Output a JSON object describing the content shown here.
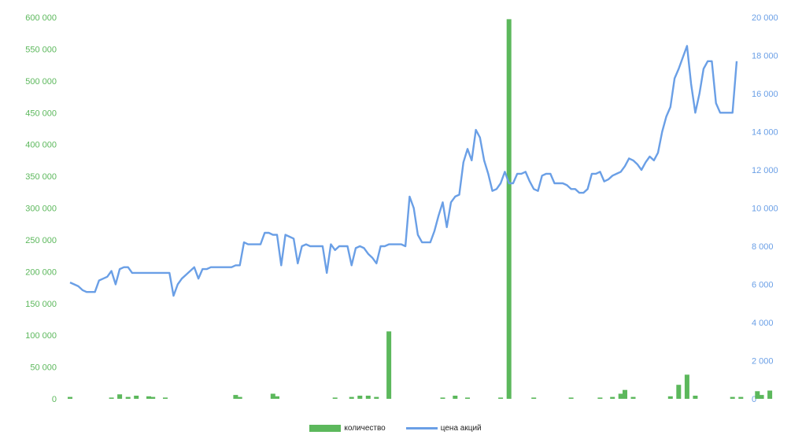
{
  "chart_data": {
    "type": "bar+line",
    "left_axis": {
      "ylim": [
        0,
        600000
      ],
      "ticks": [
        "0",
        "50 000",
        "100 000",
        "150 000",
        "200 000",
        "250 000",
        "300 000",
        "350 000",
        "400 000",
        "450 000",
        "500 000",
        "550 000",
        "600 000"
      ]
    },
    "right_axis": {
      "ylim": [
        0,
        20000
      ],
      "ticks": [
        "0",
        "2 000",
        "4 000",
        "6 000",
        "8 000",
        "10 000",
        "12 000",
        "14 000",
        "16 000",
        "18 000",
        "20 000"
      ]
    },
    "grid": false,
    "legend_position": "bottom",
    "series": [
      {
        "name": "количество",
        "type": "bar",
        "axis": "left",
        "color": "#5cb85c",
        "bars": [
          {
            "i": 0,
            "v": 3000
          },
          {
            "i": 10,
            "v": 2000
          },
          {
            "i": 12,
            "v": 7000
          },
          {
            "i": 14,
            "v": 3000
          },
          {
            "i": 16,
            "v": 5000
          },
          {
            "i": 19,
            "v": 4000
          },
          {
            "i": 20,
            "v": 3000
          },
          {
            "i": 23,
            "v": 2000
          },
          {
            "i": 40,
            "v": 6000
          },
          {
            "i": 41,
            "v": 3000
          },
          {
            "i": 49,
            "v": 8000
          },
          {
            "i": 50,
            "v": 4000
          },
          {
            "i": 64,
            "v": 2000
          },
          {
            "i": 68,
            "v": 3000
          },
          {
            "i": 70,
            "v": 5000
          },
          {
            "i": 72,
            "v": 5000
          },
          {
            "i": 74,
            "v": 3000
          },
          {
            "i": 77,
            "v": 106000
          },
          {
            "i": 90,
            "v": 2000
          },
          {
            "i": 93,
            "v": 5000
          },
          {
            "i": 96,
            "v": 2000
          },
          {
            "i": 104,
            "v": 2000
          },
          {
            "i": 106,
            "v": 597000
          },
          {
            "i": 112,
            "v": 2000
          },
          {
            "i": 121,
            "v": 2000
          },
          {
            "i": 128,
            "v": 2000
          },
          {
            "i": 131,
            "v": 3000
          },
          {
            "i": 133,
            "v": 8000
          },
          {
            "i": 134,
            "v": 14000
          },
          {
            "i": 136,
            "v": 3000
          },
          {
            "i": 145,
            "v": 4000
          },
          {
            "i": 147,
            "v": 22000
          },
          {
            "i": 149,
            "v": 38000
          },
          {
            "i": 151,
            "v": 5000
          },
          {
            "i": 160,
            "v": 3000
          },
          {
            "i": 162,
            "v": 3000
          },
          {
            "i": 166,
            "v": 12000
          },
          {
            "i": 167,
            "v": 6000
          },
          {
            "i": 169,
            "v": 13000
          }
        ]
      },
      {
        "name": "цена акций",
        "type": "line",
        "axis": "right",
        "color": "#6a9fe6",
        "values": [
          6100,
          6000,
          5900,
          5700,
          5600,
          5600,
          5600,
          6200,
          6300,
          6400,
          6700,
          6000,
          6800,
          6900,
          6900,
          6600,
          6600,
          6600,
          6600,
          6600,
          6600,
          6600,
          6600,
          6600,
          6600,
          5400,
          6000,
          6300,
          6500,
          6700,
          6900,
          6300,
          6800,
          6800,
          6900,
          6900,
          6900,
          6900,
          6900,
          6900,
          7000,
          7000,
          8200,
          8100,
          8100,
          8100,
          8100,
          8700,
          8700,
          8600,
          8600,
          7000,
          8600,
          8500,
          8400,
          7100,
          8000,
          8100,
          8000,
          8000,
          8000,
          8000,
          6600,
          8100,
          7800,
          8000,
          8000,
          8000,
          7000,
          7900,
          8000,
          7900,
          7600,
          7400,
          7100,
          8000,
          8000,
          8100,
          8100,
          8100,
          8100,
          8000,
          10600,
          10000,
          8600,
          8200,
          8200,
          8200,
          8800,
          9600,
          10300,
          9000,
          10300,
          10600,
          10700,
          12400,
          13100,
          12500,
          14100,
          13700,
          12500,
          11800,
          10900,
          11000,
          11300,
          11900,
          11300,
          11300,
          11800,
          11800,
          11900,
          11400,
          11000,
          10900,
          11700,
          11800,
          11800,
          11300,
          11300,
          11300,
          11200,
          11000,
          11000,
          10800,
          10800,
          11000,
          11800,
          11800,
          11900,
          11400,
          11500,
          11700,
          11800,
          11900,
          12200,
          12600,
          12500,
          12300,
          12000,
          12400,
          12700,
          12500,
          12900,
          14000,
          14800,
          15300,
          16800,
          17300,
          17900,
          18500,
          16500,
          15000,
          16000,
          17300,
          17700,
          17700,
          15500,
          15000,
          15000,
          15000,
          15000,
          17700
        ],
        "line_x_start_index": 0
      }
    ]
  }
}
